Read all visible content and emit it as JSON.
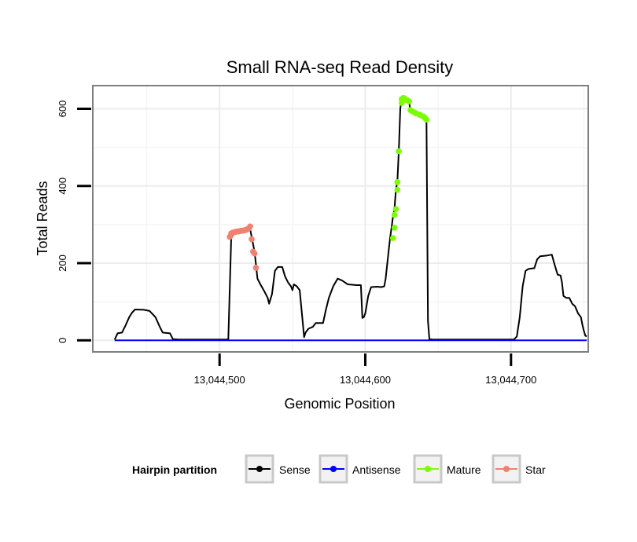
{
  "chart_data": {
    "type": "line",
    "title": "Small RNA-seq Read Density",
    "xlabel": "Genomic Position",
    "ylabel": "Total Reads",
    "xlim": [
      13044413,
      13044753
    ],
    "ylim": [
      -30,
      660
    ],
    "x_ticks": [
      13044500,
      13044600,
      13044700
    ],
    "x_tick_labels": [
      "13,044,500",
      "13,044,600",
      "13,044,700"
    ],
    "y_ticks": [
      0,
      200,
      400,
      600
    ],
    "y_tick_labels": [
      "0",
      "200",
      "400",
      "600"
    ],
    "grid": true,
    "legend": {
      "title": "Hairpin partition",
      "position": "bottom",
      "entries": [
        {
          "label": "Sense",
          "color": "#000000"
        },
        {
          "label": "Antisense",
          "color": "#0000ff"
        },
        {
          "label": "Mature",
          "color": "#7cfc00"
        },
        {
          "label": "Star",
          "color": "#f08070"
        }
      ]
    },
    "series": [
      {
        "name": "Sense",
        "color": "#000000",
        "style": "line",
        "points": [
          [
            13044428,
            2
          ],
          [
            13044430,
            18
          ],
          [
            13044433,
            20
          ],
          [
            13044435,
            35
          ],
          [
            13044438,
            60
          ],
          [
            13044440,
            72
          ],
          [
            13044442,
            80
          ],
          [
            13044448,
            79
          ],
          [
            13044452,
            76
          ],
          [
            13044456,
            60
          ],
          [
            13044459,
            35
          ],
          [
            13044461,
            20
          ],
          [
            13044466,
            18
          ],
          [
            13044468,
            3
          ],
          [
            13044472,
            2
          ],
          [
            13044506,
            2
          ],
          [
            13044508,
            265
          ],
          [
            13044510,
            278
          ],
          [
            13044518,
            283
          ],
          [
            13044521,
            288
          ],
          [
            13044522,
            268
          ],
          [
            13044524,
            230
          ],
          [
            13044526,
            160
          ],
          [
            13044528,
            145
          ],
          [
            13044531,
            125
          ],
          [
            13044533,
            110
          ],
          [
            13044534,
            95
          ],
          [
            13044536,
            120
          ],
          [
            13044538,
            180
          ],
          [
            13044540,
            190
          ],
          [
            13044543,
            190
          ],
          [
            13044545,
            165
          ],
          [
            13044547,
            150
          ],
          [
            13044549,
            140
          ],
          [
            13044550,
            130
          ],
          [
            13044551,
            145
          ],
          [
            13044553,
            140
          ],
          [
            13044555,
            130
          ],
          [
            13044557,
            50
          ],
          [
            13044558,
            8
          ],
          [
            13044559,
            20
          ],
          [
            13044561,
            30
          ],
          [
            13044564,
            35
          ],
          [
            13044566,
            45
          ],
          [
            13044571,
            45
          ],
          [
            13044573,
            80
          ],
          [
            13044575,
            110
          ],
          [
            13044578,
            140
          ],
          [
            13044581,
            160
          ],
          [
            13044584,
            155
          ],
          [
            13044586,
            150
          ],
          [
            13044588,
            145
          ],
          [
            13044594,
            143
          ],
          [
            13044597,
            143
          ],
          [
            13044598,
            58
          ],
          [
            13044599,
            60
          ],
          [
            13044600,
            70
          ],
          [
            13044602,
            115
          ],
          [
            13044604,
            138
          ],
          [
            13044608,
            139
          ],
          [
            13044611,
            138
          ],
          [
            13044613,
            140
          ],
          [
            13044614,
            160
          ],
          [
            13044616,
            230
          ],
          [
            13044617,
            265
          ],
          [
            13044618,
            292
          ],
          [
            13044619,
            320
          ],
          [
            13044620,
            340
          ],
          [
            13044621,
            390
          ],
          [
            13044622,
            412
          ],
          [
            13044623,
            490
          ],
          [
            13044624,
            600
          ],
          [
            13044625,
            628
          ],
          [
            13044628,
            625
          ],
          [
            13044630,
            620
          ],
          [
            13044631,
            594
          ],
          [
            13044634,
            590
          ],
          [
            13044637,
            583
          ],
          [
            13044640,
            580
          ],
          [
            13044641,
            575
          ],
          [
            13044642,
            570
          ],
          [
            13044643,
            50
          ],
          [
            13044644,
            3
          ],
          [
            13044646,
            2
          ],
          [
            13044670,
            2
          ],
          [
            13044690,
            2
          ],
          [
            13044702,
            2
          ],
          [
            13044704,
            10
          ],
          [
            13044706,
            60
          ],
          [
            13044708,
            140
          ],
          [
            13044710,
            180
          ],
          [
            13044712,
            185
          ],
          [
            13044716,
            187
          ],
          [
            13044718,
            210
          ],
          [
            13044720,
            218
          ],
          [
            13044725,
            220
          ],
          [
            13044728,
            222
          ],
          [
            13044730,
            195
          ],
          [
            13044732,
            170
          ],
          [
            13044734,
            168
          ],
          [
            13044735,
            150
          ],
          [
            13044736,
            115
          ],
          [
            13044738,
            110
          ],
          [
            13044740,
            110
          ],
          [
            13044742,
            95
          ],
          [
            13044744,
            88
          ],
          [
            13044746,
            70
          ],
          [
            13044748,
            60
          ],
          [
            13044749,
            40
          ],
          [
            13044750,
            25
          ],
          [
            13044751,
            12
          ],
          [
            13044752,
            10
          ]
        ]
      },
      {
        "name": "Antisense",
        "color": "#0000ff",
        "style": "line",
        "points": [
          [
            13044428,
            0
          ],
          [
            13044752,
            0
          ]
        ]
      },
      {
        "name": "Mature",
        "color": "#7cfc00",
        "style": "points",
        "points": [
          [
            13044619,
            265
          ],
          [
            13044620,
            292
          ],
          [
            13044620,
            325
          ],
          [
            13044621,
            340
          ],
          [
            13044622,
            390
          ],
          [
            13044622,
            410
          ],
          [
            13044623,
            490
          ],
          [
            13044625,
            615
          ],
          [
            13044625,
            625
          ],
          [
            13044626,
            628
          ],
          [
            13044627,
            627
          ],
          [
            13044628,
            623
          ],
          [
            13044629,
            622
          ],
          [
            13044630,
            619
          ],
          [
            13044631,
            597
          ],
          [
            13044632,
            594
          ],
          [
            13044634,
            590
          ],
          [
            13044635,
            588
          ],
          [
            13044637,
            585
          ],
          [
            13044638,
            583
          ],
          [
            13044640,
            580
          ],
          [
            13044641,
            576
          ],
          [
            13044642,
            572
          ]
        ]
      },
      {
        "name": "Star",
        "color": "#f08070",
        "style": "points",
        "points": [
          [
            13044507,
            268
          ],
          [
            13044508,
            277
          ],
          [
            13044509,
            279
          ],
          [
            13044510,
            280
          ],
          [
            13044511,
            281
          ],
          [
            13044512,
            282
          ],
          [
            13044513,
            282
          ],
          [
            13044514,
            283
          ],
          [
            13044515,
            284
          ],
          [
            13044516,
            284
          ],
          [
            13044517,
            285
          ],
          [
            13044518,
            286
          ],
          [
            13044519,
            288
          ],
          [
            13044520,
            290
          ],
          [
            13044521,
            295
          ],
          [
            13044522,
            262
          ],
          [
            13044523,
            230
          ],
          [
            13044524,
            225
          ],
          [
            13044525,
            188
          ]
        ]
      }
    ]
  }
}
